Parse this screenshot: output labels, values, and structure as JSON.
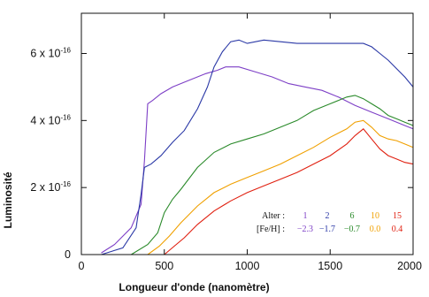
{
  "chart_data": {
    "type": "line",
    "xlabel": "Longueur d'onde (nanomètre)",
    "ylabel": "Luminosité",
    "xlim": [
      0,
      2000
    ],
    "ylim": [
      0,
      7.2
    ],
    "x_ticks": [
      {
        "value": 0,
        "label": "0"
      },
      {
        "value": 500,
        "label": "500"
      },
      {
        "value": 1000,
        "label": "1000"
      },
      {
        "value": 1500,
        "label": "1500"
      },
      {
        "value": 2000,
        "label": "2000"
      }
    ],
    "y_ticks": [
      {
        "value": 0,
        "mantissa": "0",
        "exponent": ""
      },
      {
        "value": 2,
        "mantissa": "2 x 10",
        "exponent": "-16"
      },
      {
        "value": 4,
        "mantissa": "4 x 10",
        "exponent": "-16"
      },
      {
        "value": 6,
        "mantissa": "6 x 10",
        "exponent": "-16"
      }
    ],
    "y_unit_multiplier": "10^-16",
    "grid": false,
    "legend": {
      "position": "bottom-right",
      "row1_label": "Alter :",
      "row2_label": "[Fe/H] :",
      "entries": [
        {
          "alter": "1",
          "feh": "−2.3",
          "color": "#7d3fc6"
        },
        {
          "alter": "2",
          "feh": "−1.7",
          "color": "#2a38a6"
        },
        {
          "alter": "6",
          "feh": "−0.7",
          "color": "#2a8a2a"
        },
        {
          "alter": "10",
          "feh": "0.0",
          "color": "#f0a000"
        },
        {
          "alter": "15",
          "feh": "0.4",
          "color": "#e02010"
        }
      ]
    },
    "series": [
      {
        "color": "#7d3fc6",
        "points": [
          [
            120,
            0.05
          ],
          [
            200,
            0.3
          ],
          [
            300,
            0.8
          ],
          [
            360,
            1.5
          ],
          [
            380,
            2.8
          ],
          [
            400,
            4.5
          ],
          [
            430,
            4.6
          ],
          [
            480,
            4.8
          ],
          [
            550,
            5.0
          ],
          [
            650,
            5.2
          ],
          [
            750,
            5.4
          ],
          [
            820,
            5.5
          ],
          [
            870,
            5.6
          ],
          [
            950,
            5.6
          ],
          [
            1050,
            5.45
          ],
          [
            1150,
            5.3
          ],
          [
            1250,
            5.1
          ],
          [
            1350,
            5.0
          ],
          [
            1450,
            4.9
          ],
          [
            1550,
            4.7
          ],
          [
            1650,
            4.45
          ],
          [
            1750,
            4.25
          ],
          [
            1850,
            4.05
          ],
          [
            1950,
            3.85
          ],
          [
            2000,
            3.75
          ]
        ]
      },
      {
        "color": "#2a38a6",
        "points": [
          [
            120,
            0.0
          ],
          [
            250,
            0.2
          ],
          [
            330,
            0.8
          ],
          [
            360,
            1.8
          ],
          [
            380,
            2.6
          ],
          [
            420,
            2.7
          ],
          [
            480,
            2.95
          ],
          [
            550,
            3.35
          ],
          [
            620,
            3.7
          ],
          [
            700,
            4.35
          ],
          [
            760,
            5.0
          ],
          [
            800,
            5.6
          ],
          [
            850,
            6.05
          ],
          [
            900,
            6.35
          ],
          [
            950,
            6.4
          ],
          [
            1000,
            6.3
          ],
          [
            1100,
            6.4
          ],
          [
            1200,
            6.35
          ],
          [
            1300,
            6.3
          ],
          [
            1400,
            6.3
          ],
          [
            1500,
            6.3
          ],
          [
            1600,
            6.3
          ],
          [
            1700,
            6.3
          ],
          [
            1750,
            6.2
          ],
          [
            1800,
            6.0
          ],
          [
            1850,
            5.8
          ],
          [
            1900,
            5.55
          ],
          [
            1950,
            5.3
          ],
          [
            2000,
            5.0
          ]
        ]
      },
      {
        "color": "#2a8a2a",
        "points": [
          [
            300,
            0.0
          ],
          [
            400,
            0.3
          ],
          [
            460,
            0.65
          ],
          [
            500,
            1.25
          ],
          [
            550,
            1.65
          ],
          [
            600,
            1.95
          ],
          [
            700,
            2.6
          ],
          [
            800,
            3.05
          ],
          [
            900,
            3.3
          ],
          [
            1000,
            3.45
          ],
          [
            1100,
            3.6
          ],
          [
            1200,
            3.8
          ],
          [
            1300,
            4.0
          ],
          [
            1400,
            4.3
          ],
          [
            1500,
            4.5
          ],
          [
            1550,
            4.6
          ],
          [
            1600,
            4.7
          ],
          [
            1650,
            4.75
          ],
          [
            1700,
            4.65
          ],
          [
            1750,
            4.5
          ],
          [
            1800,
            4.35
          ],
          [
            1850,
            4.15
          ],
          [
            1900,
            4.05
          ],
          [
            1950,
            3.95
          ],
          [
            2000,
            3.85
          ]
        ]
      },
      {
        "color": "#f0a000",
        "points": [
          [
            400,
            0.0
          ],
          [
            470,
            0.25
          ],
          [
            530,
            0.55
          ],
          [
            600,
            0.95
          ],
          [
            700,
            1.45
          ],
          [
            800,
            1.85
          ],
          [
            900,
            2.1
          ],
          [
            1000,
            2.3
          ],
          [
            1100,
            2.5
          ],
          [
            1200,
            2.7
          ],
          [
            1300,
            2.95
          ],
          [
            1400,
            3.2
          ],
          [
            1500,
            3.5
          ],
          [
            1600,
            3.75
          ],
          [
            1650,
            3.95
          ],
          [
            1700,
            4.0
          ],
          [
            1750,
            3.8
          ],
          [
            1800,
            3.55
          ],
          [
            1850,
            3.45
          ],
          [
            1900,
            3.4
          ],
          [
            1950,
            3.3
          ],
          [
            2000,
            3.2
          ]
        ]
      },
      {
        "color": "#e02010",
        "points": [
          [
            500,
            0.0
          ],
          [
            560,
            0.25
          ],
          [
            620,
            0.5
          ],
          [
            700,
            0.9
          ],
          [
            800,
            1.3
          ],
          [
            900,
            1.6
          ],
          [
            1000,
            1.85
          ],
          [
            1100,
            2.05
          ],
          [
            1200,
            2.25
          ],
          [
            1300,
            2.45
          ],
          [
            1400,
            2.7
          ],
          [
            1500,
            2.95
          ],
          [
            1600,
            3.3
          ],
          [
            1650,
            3.55
          ],
          [
            1700,
            3.75
          ],
          [
            1750,
            3.45
          ],
          [
            1800,
            3.15
          ],
          [
            1850,
            2.95
          ],
          [
            1900,
            2.85
          ],
          [
            1950,
            2.75
          ],
          [
            2000,
            2.7
          ]
        ]
      }
    ]
  }
}
